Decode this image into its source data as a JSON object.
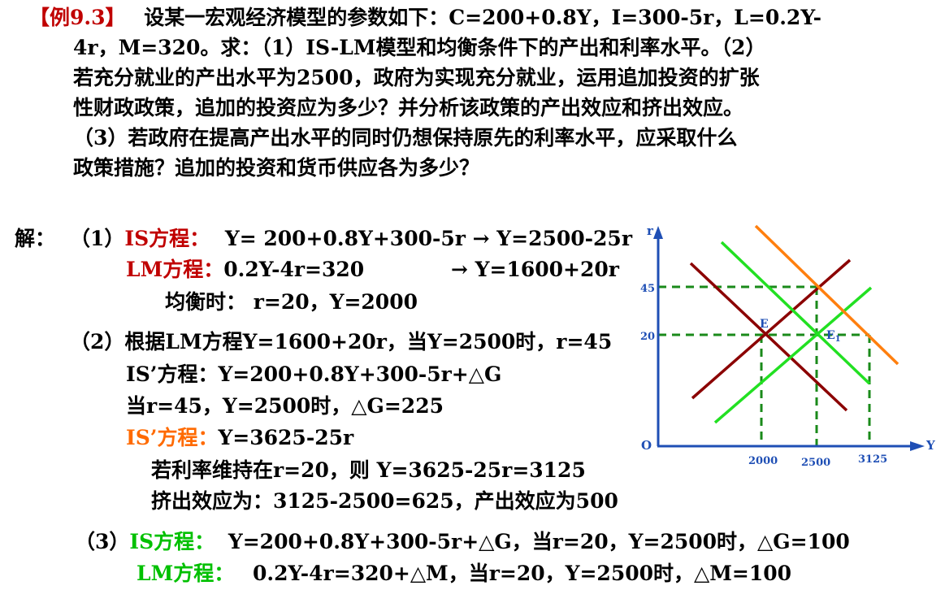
{
  "problem": {
    "tag": "【例9.3】",
    "lines": [
      "设某一宏观经济模型的参数如下：C=200+0.8Y，I=300-5r，L=0.2Y-",
      "4r，M=320。求：（1）IS-LM模型和均衡条件下的产出和利率水平。（2）",
      "若充分就业的产出水平为2500，政府为实现充分就业，运用追加投资的扩张",
      "性财政政策，追加的投资应为多少？并分析该政策的产出效应和挤出效应。",
      "（3）若政府在提高产出水平的同时仍想保持原先的利率水平，应采取什么",
      "政策措施？追加的投资和货币供应各为多少？"
    ]
  },
  "solution": {
    "label": "解：",
    "part1": {
      "num": "（1）",
      "is_label": "IS方程：",
      "is_eq": "Y= 200+0.8Y+300-5r → Y=2500-25r",
      "lm_label": "LM方程：",
      "lm_eq": "0.2Y-4r=320",
      "lm_result": "→ Y=1600+20r",
      "equilibrium": "均衡时： r=20，Y=2000"
    },
    "part2": {
      "line1": "（2）根据LM方程Y=1600+20r，当Y=2500时，r=45",
      "line2": "IS’方程：Y=200+0.8Y+300-5r+△G",
      "line3": "当r=45，Y=2500时，△G=225",
      "is2_label": "IS’方程：",
      "is2_eq": "Y=3625-25r",
      "line5": "若利率维持在r=20，则 Y=3625-25r=3125",
      "line6": "挤出效应为：3125-2500=625，产出效应为500"
    },
    "part3": {
      "num": "（3）",
      "is_label": "IS方程：",
      "is_eq": "Y=200+0.8Y+300-5r+△G，当r=20，Y=2500时，△G=100",
      "lm_label": "LM方程：",
      "lm_eq": "0.2Y-4r=320+△M，当r=20，Y=2500时，△M=100"
    }
  },
  "graph": {
    "y_axis_label": "r",
    "x_axis_label": "Y",
    "origin_label": "O",
    "r_ticks": [
      "45",
      "20"
    ],
    "y_ticks": [
      "2000",
      "2500",
      "3125"
    ],
    "point_e": "E",
    "point_e1": "E",
    "point_e1_sub": "1",
    "colors": {
      "axis": "#1f4fb5",
      "is": "#8b0000",
      "lm": "#8b0000",
      "lm_new": "#22e022",
      "is_new": "#22e022",
      "is_shifted": "#ff7f0e",
      "guide": "#1a8a1a",
      "tick_text": "#1f4fb5"
    }
  }
}
